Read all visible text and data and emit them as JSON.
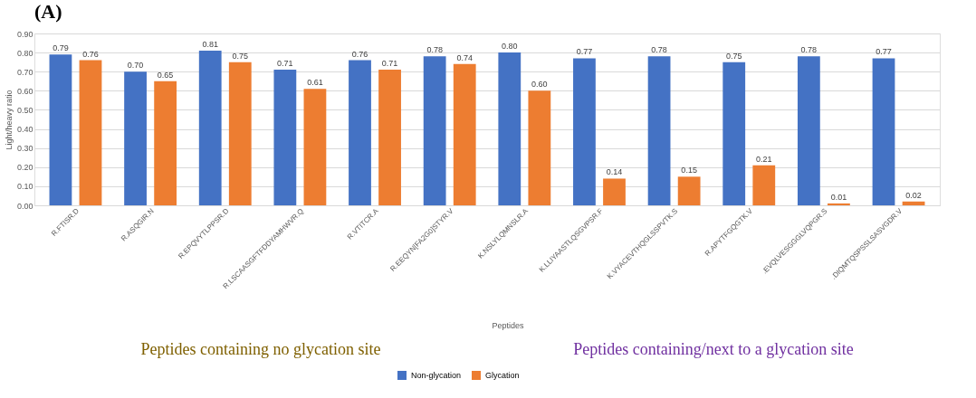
{
  "chart_data": {
    "type": "bar",
    "title": "(A)",
    "xlabel": "Peptides",
    "ylabel": "Light/heavy ratio",
    "categories": [
      "R.FTISR.D",
      "R.ASQGIR.N",
      "R.EPQVYTLPPSR.D",
      "R.LSCAASGFTFDDYAMHWVR.Q",
      "R.VTITCR.A",
      "R.EEQYN[FA2G0]STYR.V",
      "K.NSLYLQMNSLR.A",
      "K.LLIYAASTLQSGVPSR.F",
      "K.VYACEVTHQGLSSPVTK.S",
      "R.APYTFGQGTK.V",
      ".EVQLVESGGGLVQPGR.S",
      ".DIQMTQSPSSLSASVGDR.V"
    ],
    "series": [
      {
        "name": "Non-glycation",
        "color": "#4472c4",
        "values": [
          0.79,
          0.7,
          0.81,
          0.71,
          0.76,
          0.78,
          0.8,
          0.77,
          0.78,
          0.75,
          0.78,
          0.77
        ],
        "value_labels": [
          "0.79",
          "0.70",
          "0.81",
          "0.71",
          "0.76",
          "0.78",
          "0.80",
          "0.77",
          "0.78",
          "0.75",
          "0.78",
          "0.77"
        ]
      },
      {
        "name": "Glycation",
        "color": "#ed7d31",
        "values": [
          0.76,
          0.65,
          0.75,
          0.61,
          0.71,
          0.74,
          0.6,
          0.14,
          0.15,
          0.21,
          0.01,
          0.02
        ],
        "value_labels": [
          "0.76",
          "0.65",
          "0.75",
          "0.61",
          "0.71",
          "0.74",
          "0.60",
          "0.14",
          "0.15",
          "0.21",
          "0.01",
          "0.02"
        ]
      }
    ],
    "ylim": [
      0,
      0.9
    ],
    "yticks": [
      {
        "value": 0,
        "label": "0.00"
      },
      {
        "value": 0.1,
        "label": "0.10"
      },
      {
        "value": 0.2,
        "label": "0.20"
      },
      {
        "value": 0.3,
        "label": "0.30"
      },
      {
        "value": 0.4,
        "label": "0.40"
      },
      {
        "value": 0.5,
        "label": "0.50"
      },
      {
        "value": 0.6,
        "label": "0.60"
      },
      {
        "value": 0.7,
        "label": "0.70"
      },
      {
        "value": 0.8,
        "label": "0.80"
      },
      {
        "value": 0.9,
        "label": "0.90"
      }
    ],
    "grid": "y",
    "legend": "bottom",
    "annotations": [
      "Peptides containing no glycation site",
      "Peptides containing/next to a glycation site"
    ]
  }
}
